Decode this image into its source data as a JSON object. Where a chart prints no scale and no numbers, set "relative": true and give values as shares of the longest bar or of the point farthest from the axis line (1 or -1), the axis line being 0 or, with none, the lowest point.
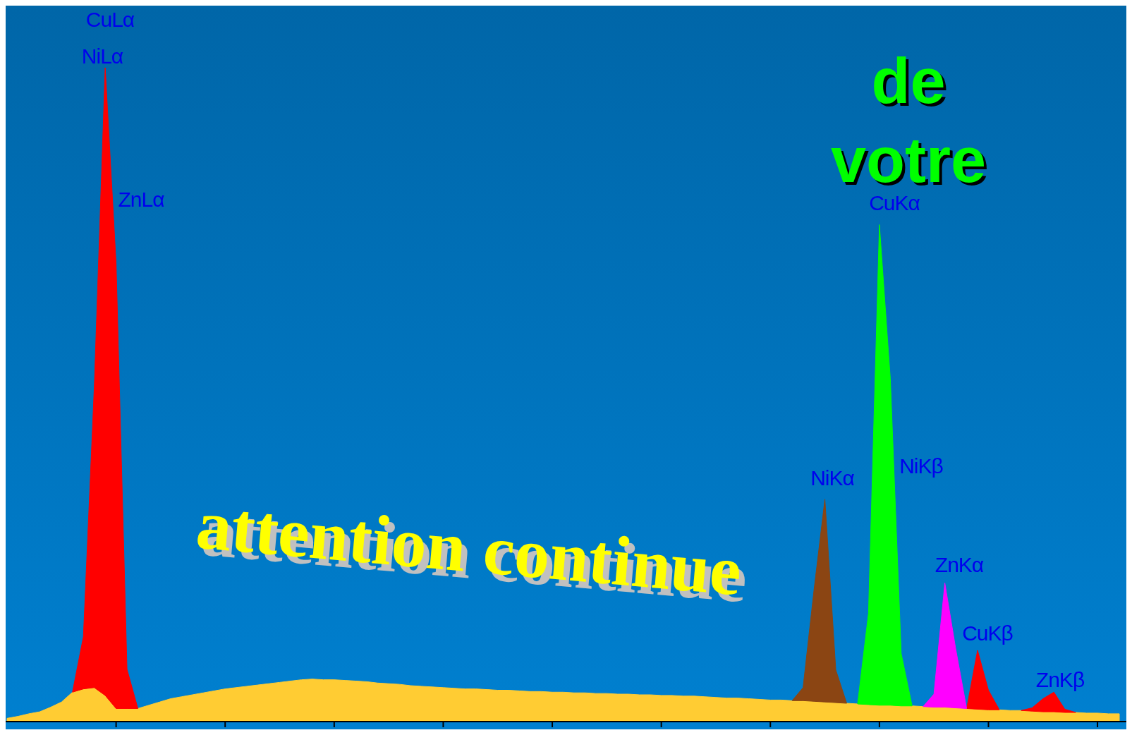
{
  "chart_data": {
    "type": "area",
    "relative": true,
    "stacked": true,
    "categories": [
      null,
      null,
      null,
      null,
      null,
      null,
      null,
      null,
      null,
      null,
      null,
      null,
      null,
      null,
      null,
      null,
      null,
      null,
      null,
      null,
      null,
      null,
      null,
      null,
      null,
      null,
      null,
      null,
      null,
      null,
      null,
      null,
      null,
      null,
      null,
      null,
      null,
      null,
      null,
      null,
      null,
      null,
      null,
      null,
      null,
      null,
      null,
      null,
      null,
      null,
      null,
      null,
      null,
      null,
      null,
      null,
      null,
      null,
      null,
      null,
      null,
      null,
      null,
      null,
      null,
      null,
      null,
      null,
      null,
      null,
      null,
      null,
      null,
      null,
      null,
      null,
      null,
      null,
      null,
      null,
      null,
      null,
      null,
      null,
      null,
      null,
      null,
      null,
      null,
      null,
      null,
      null,
      null,
      null,
      null,
      null,
      null,
      null,
      null,
      null,
      null,
      null,
      null
    ],
    "series": [
      {
        "color": "#ffcc33",
        "values": [
          0.005,
          0.008,
          0.012,
          0.015,
          0.022,
          0.03,
          0.045,
          0.05,
          0.052,
          0.04,
          0.02,
          0.02,
          0.02,
          0.025,
          0.03,
          0.035,
          0.038,
          0.041,
          0.044,
          0.047,
          0.05,
          0.052,
          0.054,
          0.056,
          0.058,
          0.06,
          0.062,
          0.064,
          0.065,
          0.064,
          0.064,
          0.063,
          0.062,
          0.061,
          0.059,
          0.058,
          0.057,
          0.055,
          0.054,
          0.053,
          0.052,
          0.051,
          0.05,
          0.05,
          0.049,
          0.048,
          0.048,
          0.047,
          0.046,
          0.046,
          0.045,
          0.045,
          0.044,
          0.044,
          0.043,
          0.043,
          0.042,
          0.042,
          0.041,
          0.041,
          0.04,
          0.04,
          0.039,
          0.039,
          0.038,
          0.037,
          0.036,
          0.036,
          0.035,
          0.034,
          0.033,
          0.033,
          0.032,
          0.032,
          0.031,
          0.03,
          0.029,
          0.028,
          0.027,
          0.026,
          0.025,
          0.025,
          0.024,
          0.024,
          0.023,
          0.022,
          0.022,
          0.021,
          0.02,
          0.019,
          0.018,
          0.018,
          0.017,
          0.017,
          0.016,
          0.015,
          0.015,
          0.014,
          0.014,
          0.013,
          0.013,
          0.012,
          0.012
        ]
      },
      {
        "color": "#ff0000",
        "values": [
          null,
          null,
          null,
          null,
          null,
          null,
          0,
          0.08,
          0.46,
          0.96,
          0.68,
          0.06,
          0,
          null,
          null,
          null,
          null,
          null,
          null,
          null,
          null,
          null,
          null,
          null,
          null,
          null,
          null,
          null,
          null,
          null,
          null,
          null,
          null,
          null,
          null,
          null,
          null,
          null,
          null,
          null,
          null,
          null,
          null,
          null,
          null,
          null,
          null,
          null,
          null,
          null,
          null,
          null,
          null,
          null,
          null,
          null,
          null,
          null,
          null,
          null,
          null,
          null,
          null,
          null,
          null,
          null,
          null,
          null,
          null,
          null,
          null,
          null,
          null,
          null,
          null,
          null,
          null,
          null,
          null,
          null,
          null,
          null,
          null,
          null,
          null,
          null,
          null,
          null,
          0,
          0.09,
          0.03,
          0,
          null,
          0,
          0.005,
          0.02,
          0.03,
          0.005,
          0,
          null,
          null,
          null,
          null
        ]
      },
      {
        "color": "#8b4513",
        "values": [
          null,
          null,
          null,
          null,
          null,
          null,
          null,
          null,
          null,
          null,
          null,
          null,
          null,
          null,
          null,
          null,
          null,
          null,
          null,
          null,
          null,
          null,
          null,
          null,
          null,
          null,
          null,
          null,
          null,
          null,
          null,
          null,
          null,
          null,
          null,
          null,
          null,
          null,
          null,
          null,
          null,
          null,
          null,
          null,
          null,
          null,
          null,
          null,
          null,
          null,
          null,
          null,
          null,
          null,
          null,
          null,
          null,
          null,
          null,
          null,
          null,
          null,
          null,
          null,
          null,
          null,
          null,
          null,
          null,
          null,
          null,
          null,
          0,
          0.02,
          0.17,
          0.31,
          0.05,
          0,
          null,
          null,
          null,
          null,
          null,
          null,
          null,
          null,
          null,
          null,
          null,
          null,
          null,
          null,
          null,
          null,
          null,
          null,
          null,
          null,
          null,
          null,
          null,
          null,
          null
        ]
      },
      {
        "color": "#00ff00",
        "values": [
          null,
          null,
          null,
          null,
          null,
          null,
          null,
          null,
          null,
          null,
          null,
          null,
          null,
          null,
          null,
          null,
          null,
          null,
          null,
          null,
          null,
          null,
          null,
          null,
          null,
          null,
          null,
          null,
          null,
          null,
          null,
          null,
          null,
          null,
          null,
          null,
          null,
          null,
          null,
          null,
          null,
          null,
          null,
          null,
          null,
          null,
          null,
          null,
          null,
          null,
          null,
          null,
          null,
          null,
          null,
          null,
          null,
          null,
          null,
          null,
          null,
          null,
          null,
          null,
          null,
          null,
          null,
          null,
          null,
          null,
          null,
          null,
          null,
          null,
          null,
          null,
          null,
          null,
          0,
          0.14,
          0.735,
          0.5,
          0.08,
          0,
          null,
          null,
          null,
          null,
          null,
          null,
          null,
          null,
          null,
          null,
          null,
          null,
          null,
          null,
          null,
          null,
          null,
          null,
          null
        ]
      },
      {
        "color": "#ff00ff",
        "values": [
          null,
          null,
          null,
          null,
          null,
          null,
          null,
          null,
          null,
          null,
          null,
          null,
          null,
          null,
          null,
          null,
          null,
          null,
          null,
          null,
          null,
          null,
          null,
          null,
          null,
          null,
          null,
          null,
          null,
          null,
          null,
          null,
          null,
          null,
          null,
          null,
          null,
          null,
          null,
          null,
          null,
          null,
          null,
          null,
          null,
          null,
          null,
          null,
          null,
          null,
          null,
          null,
          null,
          null,
          null,
          null,
          null,
          null,
          null,
          null,
          null,
          null,
          null,
          null,
          null,
          null,
          null,
          null,
          null,
          null,
          null,
          null,
          null,
          null,
          null,
          null,
          null,
          null,
          null,
          null,
          null,
          null,
          null,
          null,
          0,
          0.02,
          0.19,
          0.09,
          0,
          null,
          null,
          null,
          null,
          null,
          null,
          null,
          null,
          null,
          null,
          null,
          null,
          null,
          null
        ]
      }
    ],
    "annotations": [
      "CuLα",
      "NiLα",
      "ZnLα",
      "NiKα",
      "CuKα",
      "NiKβ",
      "ZnKα",
      "CuKβ",
      "ZnKβ",
      "attention continue",
      "de votre"
    ]
  }
}
